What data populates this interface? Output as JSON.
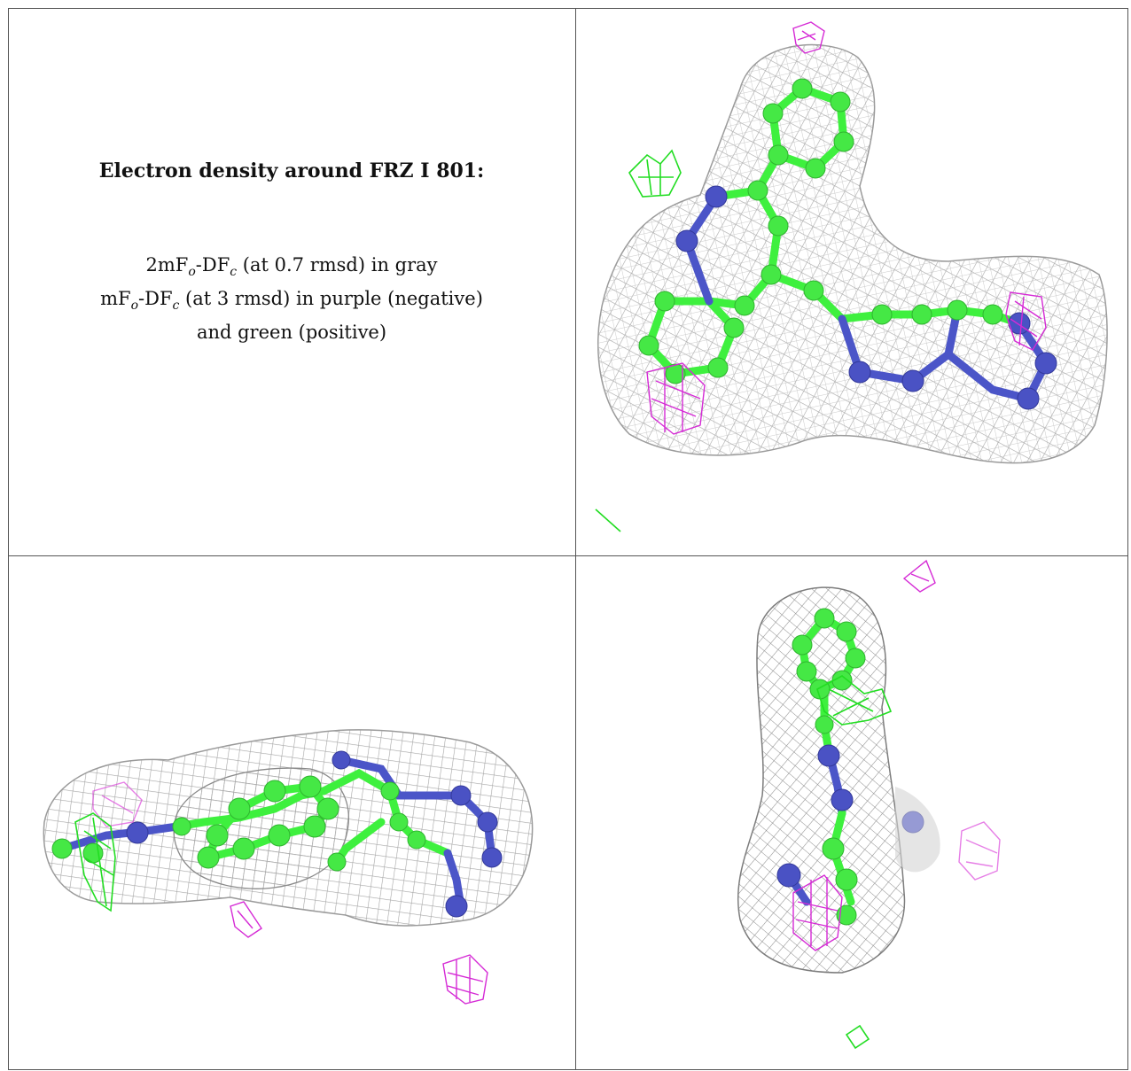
{
  "caption": {
    "title": "Electron density around FRZ I 801:",
    "line1_prefix": "2mF",
    "line1_sub": "o",
    "line1_mid": "-DF",
    "line1_sub2": "c",
    "line1_suffix": " (at 0.7 rmsd) in gray",
    "line2_prefix": "mF",
    "line2_sub": "o",
    "line2_mid": "-DF",
    "line2_sub2": "c",
    "line2_suffix": " (at 3 rmsd) in purple (negative)",
    "line3": "and green (positive)"
  },
  "colors": {
    "mesh_gray": "#a7a7a7",
    "carbon_green": "#45e845",
    "nitrogen_blue": "#4a52c4",
    "negative_density": "#d52ad5",
    "positive_density": "#22dd22"
  },
  "views": [
    "view-top-right",
    "view-bottom-left",
    "view-bottom-right"
  ]
}
